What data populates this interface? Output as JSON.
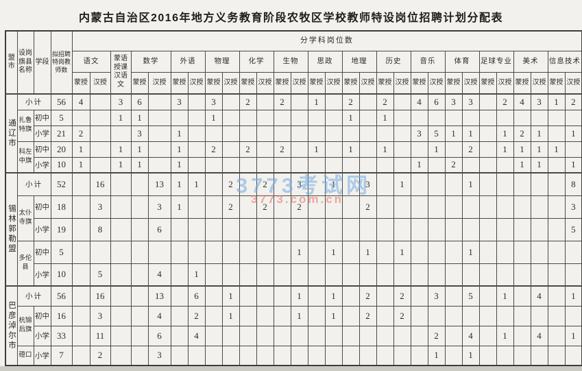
{
  "title": "内蒙古自治区2016年地方义务教育阶段农牧区学校教师特设岗位招聘计划分配表",
  "watermark": {
    "line1": "3773考试网",
    "line2": "3773.com.cn",
    "color1": "#72aae3",
    "color2": "#e97670"
  },
  "table": {
    "headers": {
      "league_city": "盟市",
      "county": "设岗旗县名称",
      "stage": "学段",
      "planned": "拟招聘特岗教师数",
      "group": "分学科岗位数",
      "mongolian": "蒙授",
      "chinese": "汉授",
      "subjects": [
        {
          "name": "语文",
          "cols": 2
        },
        {
          "name": "蒙语授课汉语文",
          "cols": 1
        },
        {
          "name": "数学",
          "cols": 2
        },
        {
          "name": "外语",
          "cols": 2
        },
        {
          "name": "物理",
          "cols": 2
        },
        {
          "name": "化学",
          "cols": 2
        },
        {
          "name": "生物",
          "cols": 2
        },
        {
          "name": "思政",
          "cols": 2
        },
        {
          "name": "地理",
          "cols": 2
        },
        {
          "name": "历史",
          "cols": 2
        },
        {
          "name": "音乐",
          "cols": 2
        },
        {
          "name": "体育",
          "cols": 2
        },
        {
          "name": "足球专业",
          "cols": 2
        },
        {
          "name": "美术",
          "cols": 2
        },
        {
          "name": "信息技术",
          "cols": 2
        }
      ]
    },
    "rows": [
      {
        "league": "通辽市",
        "league_rowspan": 5,
        "subtotal": true,
        "label": "小计",
        "total": "56",
        "values": [
          "4",
          "",
          "3",
          "6",
          "",
          "3",
          "",
          "3",
          "",
          "2",
          "",
          "2",
          "",
          "1",
          "",
          "2",
          "",
          "2",
          "",
          "4",
          "6",
          "3",
          "3",
          "",
          "2",
          "4",
          "3",
          "1",
          "2"
        ]
      },
      {
        "county": "扎鲁特旗",
        "county_rowspan": 2,
        "stage": "初中",
        "total": "5",
        "values": [
          "",
          "",
          "1",
          "1",
          "",
          "",
          "",
          "1",
          "",
          "",
          "",
          "",
          "",
          "",
          "",
          "1",
          "",
          "1",
          "",
          "",
          "",
          "",
          "",
          "",
          "",
          "",
          "",
          "",
          ""
        ]
      },
      {
        "stage": "小学",
        "total": "21",
        "values": [
          "2",
          "",
          "",
          "3",
          "",
          "1",
          "",
          "",
          "",
          "",
          "",
          "",
          "",
          "",
          "",
          "",
          "",
          "",
          "",
          "3",
          "5",
          "1",
          "1",
          "",
          "1",
          "2",
          "1",
          "",
          "1"
        ]
      },
      {
        "county": "科左中旗",
        "county_rowspan": 2,
        "stage": "初中",
        "total": "20",
        "values": [
          "1",
          "",
          "1",
          "1",
          "",
          "1",
          "",
          "2",
          "",
          "2",
          "",
          "2",
          "",
          "1",
          "",
          "1",
          "",
          "1",
          "",
          "",
          "1",
          "",
          "2",
          "",
          "1",
          "1",
          "1",
          "1",
          ""
        ]
      },
      {
        "stage": "小学",
        "total": "10",
        "values": [
          "1",
          "",
          "1",
          "1",
          "",
          "1",
          "",
          "",
          "",
          "",
          "",
          "",
          "",
          "",
          "",
          "",
          "",
          "",
          "",
          "1",
          "",
          "2",
          "",
          "",
          "",
          "1",
          "1",
          "",
          "1"
        ]
      },
      {
        "league": "锡林郭勒盟",
        "league_rowspan": 5,
        "subtotal": true,
        "label": "小计",
        "total": "52",
        "values": [
          "",
          "16",
          "",
          "",
          "13",
          "1",
          "1",
          "",
          "2",
          "",
          "2",
          "",
          "3",
          "",
          "1",
          "",
          "3",
          "",
          "1",
          "",
          "",
          "",
          "1",
          "",
          "",
          "",
          "",
          "",
          "8"
        ]
      },
      {
        "county": "太仆寺旗",
        "county_rowspan": 2,
        "stage": "初中",
        "total": "18",
        "values": [
          "",
          "3",
          "",
          "",
          "3",
          "1",
          "",
          "",
          "2",
          "",
          "2",
          "",
          "2",
          "",
          "",
          "",
          "2",
          "",
          "",
          "",
          "",
          "",
          "",
          "",
          "",
          "",
          "",
          "",
          "3"
        ]
      },
      {
        "stage": "小学",
        "total": "19",
        "values": [
          "",
          "8",
          "",
          "",
          "6",
          "",
          "",
          "",
          "",
          "",
          "",
          "",
          "",
          "",
          "",
          "",
          "",
          "",
          "",
          "",
          "",
          "",
          "",
          "",
          "",
          "",
          "",
          "",
          "5"
        ]
      },
      {
        "county": "多伦县",
        "county_rowspan": 2,
        "stage": "初中",
        "total": "5",
        "values": [
          "",
          "",
          "",
          "",
          "",
          "",
          "",
          "",
          "",
          "",
          "",
          "",
          "1",
          "",
          "1",
          "",
          "1",
          "",
          "1",
          "",
          "",
          "",
          "1",
          "",
          "",
          "",
          "",
          "",
          ""
        ]
      },
      {
        "stage": "小学",
        "total": "10",
        "values": [
          "",
          "5",
          "",
          "",
          "4",
          "",
          "1",
          "",
          "",
          "",
          "",
          "",
          "",
          "",
          "",
          "",
          "",
          "",
          "",
          "",
          "",
          "",
          "",
          "",
          "",
          "",
          "",
          "",
          ""
        ]
      },
      {
        "league": "巴彦淖尔市",
        "league_rowspan": 4,
        "subtotal": true,
        "label": "小计",
        "total": "56",
        "values": [
          "",
          "16",
          "",
          "",
          "13",
          "",
          "6",
          "",
          "1",
          "",
          "",
          "",
          "1",
          "",
          "1",
          "",
          "2",
          "",
          "2",
          "",
          "3",
          "",
          "5",
          "",
          "1",
          "",
          "4",
          "",
          "1"
        ]
      },
      {
        "county": "杭锦后旗",
        "county_rowspan": 2,
        "stage": "初中",
        "total": "16",
        "values": [
          "",
          "3",
          "",
          "",
          "4",
          "",
          "2",
          "",
          "1",
          "",
          "",
          "",
          "1",
          "",
          "1",
          "",
          "2",
          "",
          "2",
          "",
          "",
          "",
          "",
          "",
          "",
          "",
          "",
          "",
          ""
        ]
      },
      {
        "stage": "小学",
        "total": "33",
        "values": [
          "",
          "11",
          "",
          "",
          "6",
          "",
          "4",
          "",
          "",
          "",
          "",
          "",
          "",
          "",
          "",
          "",
          "",
          "",
          "",
          "",
          "2",
          "",
          "4",
          "",
          "1",
          "",
          "4",
          "",
          "1"
        ]
      },
      {
        "county": "磴口",
        "county_rowspan": 1,
        "stage": "小学",
        "total": "7",
        "values": [
          "",
          "2",
          "",
          "",
          "3",
          "",
          "",
          "",
          "",
          "",
          "",
          "",
          "",
          "",
          "",
          "",
          "",
          "",
          "",
          "",
          "1",
          "",
          "1",
          "",
          "",
          "",
          "",
          "",
          ""
        ]
      }
    ]
  }
}
